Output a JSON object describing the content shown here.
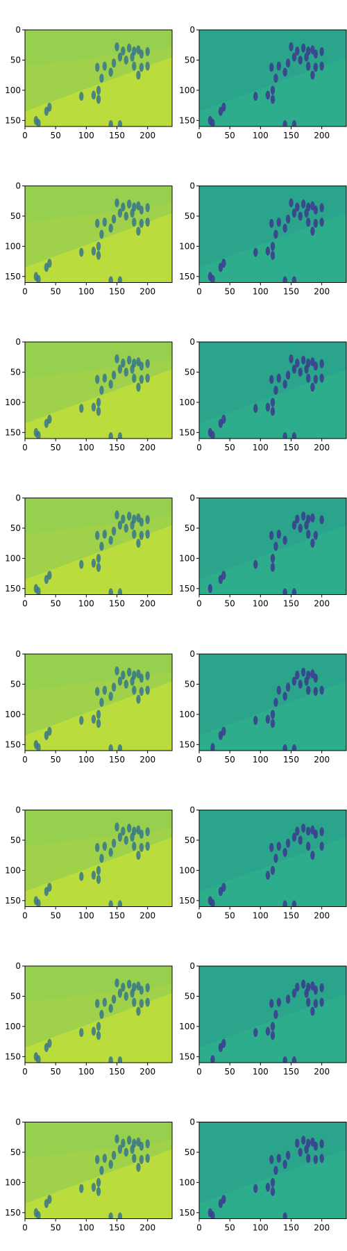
{
  "figure": {
    "rows": 8,
    "cols": 2,
    "x_ticks": [
      0,
      50,
      100,
      150,
      200
    ],
    "y_ticks": [
      0,
      50,
      100,
      150
    ],
    "x_range": [
      0,
      240
    ],
    "y_range": [
      0,
      160
    ],
    "colormap": "viridis",
    "panel_colors": {
      "left_background": "#9fd24a",
      "left_band": "#c3df3a",
      "left_figures": "#2f6f8e",
      "right_background": "#2aa58c",
      "right_band": "#2fb48a",
      "right_figures": "#3b3f8d"
    }
  }
}
